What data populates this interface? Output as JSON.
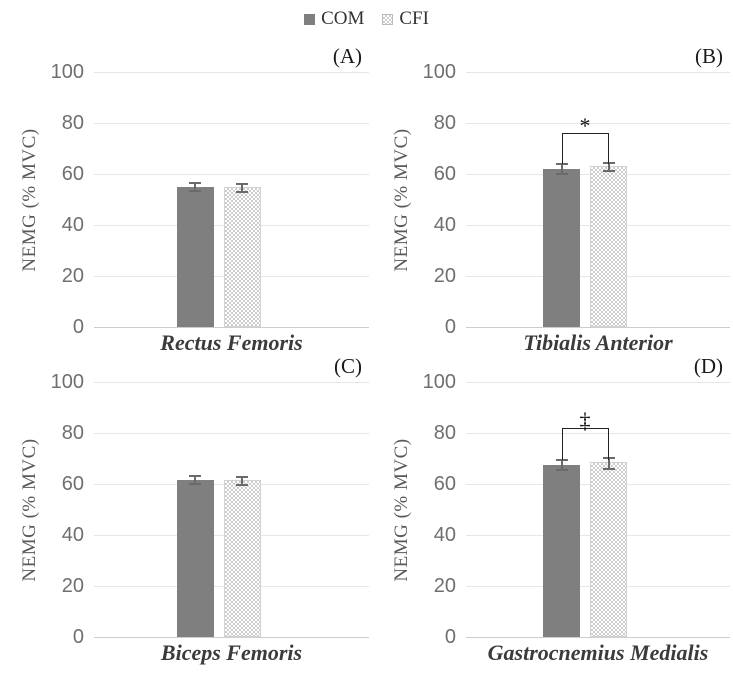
{
  "legend": {
    "items": [
      {
        "label": "COM",
        "swatch": "solid-gray-square"
      },
      {
        "label": "CFI",
        "swatch": "checker-square"
      }
    ]
  },
  "colors": {
    "com_bar": "#7f7f7f",
    "cfi_check": "#cdcdcd",
    "grid": "#e7e7e7",
    "axis_line": "#cdcdcd",
    "tick_text": "#6f6f6f",
    "ylabel_text": "#595959",
    "category_text": "#3b3b3b",
    "letter_text": "#1a1a1a",
    "error_bar": "#6a6a6a",
    "bracket": "#222222",
    "legend_text": "#333333"
  },
  "chart_data": {
    "type": "bar",
    "title": "",
    "ylabel": "NEMG (% MVC)",
    "ylim": [
      0,
      100
    ],
    "yticks": [
      0,
      20,
      40,
      60,
      80,
      100
    ],
    "grid": true,
    "legend_position": "top-center",
    "series_names": [
      "COM",
      "CFI"
    ],
    "panels": [
      {
        "letter": "(A)",
        "category": "Rectus Femoris",
        "values": [
          55,
          55
        ],
        "errors": [
          2,
          2
        ],
        "significance": null
      },
      {
        "letter": "(B)",
        "category": "Tibialis Anterior",
        "values": [
          62,
          63
        ],
        "errors": [
          2.5,
          2
        ],
        "significance": {
          "symbol": "*",
          "bracket_y": 76
        }
      },
      {
        "letter": "(C)",
        "category": "Biceps Femoris",
        "values": [
          61.5,
          61.5
        ],
        "errors": [
          2,
          2
        ],
        "significance": null
      },
      {
        "letter": "(D)",
        "category": "Gastrocnemius Medialis",
        "values": [
          67.5,
          68.5
        ],
        "errors": [
          2.5,
          2.5
        ],
        "significance": {
          "symbol": "‡",
          "bracket_y": 82
        }
      }
    ]
  }
}
